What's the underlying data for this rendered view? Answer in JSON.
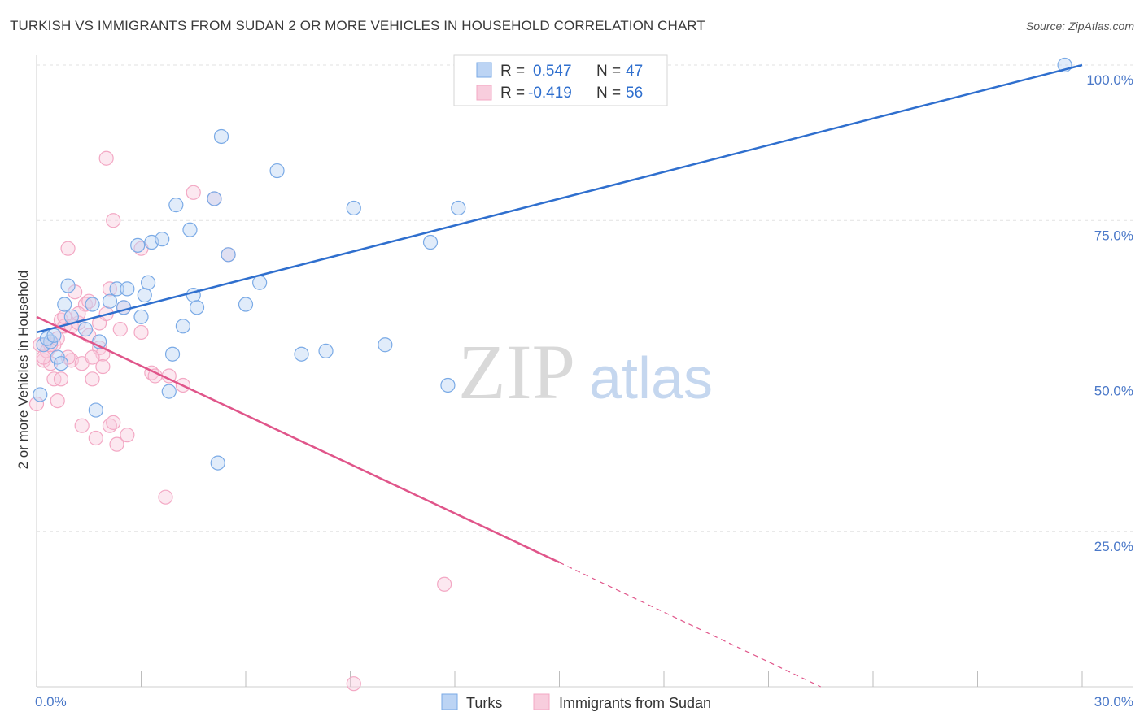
{
  "title": "TURKISH VS IMMIGRANTS FROM SUDAN 2 OR MORE VEHICLES IN HOUSEHOLD CORRELATION CHART",
  "source": "Source: ZipAtlas.com",
  "watermark": {
    "zip": "ZIP",
    "atlas": "atlas"
  },
  "colors": {
    "blue": "#7aaae6",
    "blue_line": "#2f6fce",
    "pink": "#f3a8c4",
    "pink_line": "#e0558a",
    "tick_text": "#4a78c8",
    "grid": "#e2e2e2"
  },
  "legend": {
    "rows": [
      {
        "r_label": "R =",
        "r_value": "0.547",
        "n_label": "N =",
        "n_value": "47"
      },
      {
        "r_label": "R =",
        "r_value": "-0.419",
        "n_label": "N =",
        "n_value": "56"
      }
    ]
  },
  "bottom_legend": [
    "Turks",
    "Immigrants from Sudan"
  ],
  "chart_data": {
    "type": "scatter",
    "title": "TURKISH VS IMMIGRANTS FROM SUDAN 2 OR MORE VEHICLES IN HOUSEHOLD CORRELATION CHART",
    "xlabel": "",
    "ylabel": "2 or more Vehicles in Household",
    "xlim": [
      0,
      30
    ],
    "ylim": [
      0,
      100
    ],
    "x_tick_labels": [
      "0.0%",
      "30.0%"
    ],
    "y_tick_labels": [
      "100.0%",
      "75.0%",
      "50.0%",
      "25.0%"
    ],
    "y_ticks": [
      100,
      75,
      50,
      25
    ],
    "grid": true,
    "legend_position": "top-center",
    "series": [
      {
        "name": "Turks",
        "color": "#7aaae6",
        "R": 0.547,
        "N": 47,
        "trend": {
          "x0": 0.0,
          "y0": 57.0,
          "x1": 30.0,
          "y1": 100.0
        },
        "points": [
          [
            0.1,
            47.0
          ],
          [
            0.2,
            55.0
          ],
          [
            0.4,
            55.5
          ],
          [
            0.6,
            53.0
          ],
          [
            0.7,
            52.0
          ],
          [
            0.8,
            61.5
          ],
          [
            0.9,
            64.5
          ],
          [
            1.0,
            59.5
          ],
          [
            1.4,
            57.5
          ],
          [
            1.6,
            61.5
          ],
          [
            1.7,
            44.5
          ],
          [
            1.8,
            55.5
          ],
          [
            2.1,
            62.0
          ],
          [
            2.3,
            64.0
          ],
          [
            2.5,
            61.0
          ],
          [
            2.6,
            64.0
          ],
          [
            2.9,
            71.0
          ],
          [
            3.0,
            59.5
          ],
          [
            3.1,
            63.0
          ],
          [
            3.2,
            65.0
          ],
          [
            3.3,
            71.5
          ],
          [
            3.6,
            72.0
          ],
          [
            3.8,
            47.5
          ],
          [
            3.9,
            53.5
          ],
          [
            4.0,
            77.5
          ],
          [
            4.2,
            58.0
          ],
          [
            4.4,
            73.5
          ],
          [
            4.5,
            63.0
          ],
          [
            4.6,
            61.0
          ],
          [
            5.1,
            78.5
          ],
          [
            5.2,
            36.0
          ],
          [
            5.3,
            88.5
          ],
          [
            5.5,
            69.5
          ],
          [
            6.0,
            61.5
          ],
          [
            6.4,
            65.0
          ],
          [
            6.9,
            83.0
          ],
          [
            7.6,
            53.5
          ],
          [
            8.3,
            54.0
          ],
          [
            9.1,
            77.0
          ],
          [
            10.0,
            55.0
          ],
          [
            11.3,
            71.5
          ],
          [
            11.8,
            48.5
          ],
          [
            12.1,
            77.0
          ],
          [
            12.3,
            100.0
          ],
          [
            29.5,
            100.0
          ],
          [
            0.3,
            56.0
          ],
          [
            0.5,
            56.5
          ]
        ]
      },
      {
        "name": "Immigrants from Sudan",
        "color": "#f3a8c4",
        "R": -0.419,
        "N": 56,
        "trend": {
          "x0": 0.0,
          "y0": 59.5,
          "x1": 15.0,
          "y1": 20.0,
          "dashed_to_x": 22.5,
          "dashed_to_y": 0.0
        },
        "points": [
          [
            0.0,
            45.5
          ],
          [
            0.1,
            55.0
          ],
          [
            0.2,
            52.5
          ],
          [
            0.3,
            54.0
          ],
          [
            0.4,
            52.0
          ],
          [
            0.5,
            55.0
          ],
          [
            0.5,
            49.5
          ],
          [
            0.6,
            46.0
          ],
          [
            0.7,
            59.0
          ],
          [
            0.7,
            49.5
          ],
          [
            0.8,
            58.0
          ],
          [
            0.8,
            59.5
          ],
          [
            0.9,
            70.5
          ],
          [
            1.0,
            52.5
          ],
          [
            1.0,
            58.0
          ],
          [
            1.1,
            63.5
          ],
          [
            1.2,
            58.5
          ],
          [
            1.3,
            42.0
          ],
          [
            1.3,
            52.0
          ],
          [
            1.4,
            61.5
          ],
          [
            1.5,
            62.0
          ],
          [
            1.5,
            56.5
          ],
          [
            1.6,
            49.5
          ],
          [
            1.7,
            40.0
          ],
          [
            1.8,
            58.5
          ],
          [
            1.8,
            54.5
          ],
          [
            1.9,
            53.5
          ],
          [
            1.9,
            51.5
          ],
          [
            2.0,
            60.0
          ],
          [
            2.0,
            85.0
          ],
          [
            2.1,
            64.0
          ],
          [
            2.1,
            42.0
          ],
          [
            2.2,
            42.5
          ],
          [
            2.2,
            75.0
          ],
          [
            2.3,
            39.0
          ],
          [
            2.4,
            57.5
          ],
          [
            2.5,
            61.0
          ],
          [
            2.6,
            40.5
          ],
          [
            3.0,
            57.0
          ],
          [
            3.0,
            70.5
          ],
          [
            3.3,
            50.5
          ],
          [
            3.4,
            50.0
          ],
          [
            3.7,
            30.5
          ],
          [
            3.8,
            50.0
          ],
          [
            4.2,
            48.5
          ],
          [
            4.5,
            79.5
          ],
          [
            5.1,
            78.5
          ],
          [
            5.5,
            69.5
          ],
          [
            9.1,
            0.5
          ],
          [
            11.7,
            16.5
          ],
          [
            0.2,
            53.0
          ],
          [
            0.4,
            55.0
          ],
          [
            0.6,
            56.0
          ],
          [
            0.9,
            53.0
          ],
          [
            1.2,
            60.0
          ],
          [
            1.6,
            53.0
          ]
        ]
      }
    ]
  }
}
